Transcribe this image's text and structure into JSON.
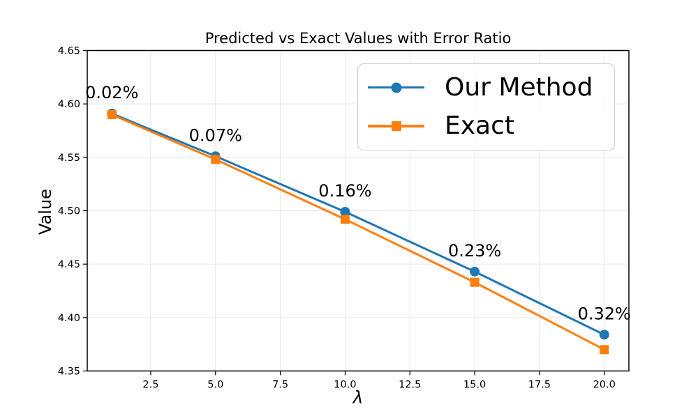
{
  "figure": {
    "title": "Predicted vs Exact Values with Error Ratio",
    "xlabel": "λ",
    "ylabel": "Value",
    "background": "#ffffff"
  },
  "colors": {
    "our_method": "#1f77b4",
    "exact": "#ff7f0e",
    "grid": "#e6e6e6",
    "spine": "#000000",
    "legend_border": "#cccccc"
  },
  "legend": {
    "position": "upper right",
    "items": [
      {
        "label": "Our Method",
        "color": "#1f77b4",
        "marker": "circle"
      },
      {
        "label": "Exact",
        "color": "#ff7f0e",
        "marker": "square"
      }
    ]
  },
  "chart_data": {
    "type": "line",
    "title": "Predicted vs Exact Values with Error Ratio",
    "xlabel": "λ",
    "ylabel": "Value",
    "grid": true,
    "legend_position": "upper right",
    "x": [
      1,
      5,
      10,
      15,
      20
    ],
    "series": [
      {
        "name": "Our Method",
        "color": "#1f77b4",
        "marker": "circle",
        "values": [
          4.591,
          4.551,
          4.499,
          4.443,
          4.384
        ]
      },
      {
        "name": "Exact",
        "color": "#ff7f0e",
        "marker": "square",
        "values": [
          4.59,
          4.548,
          4.492,
          4.433,
          4.37
        ]
      }
    ],
    "annotations": [
      {
        "x": 1,
        "label": "0.02%"
      },
      {
        "x": 5,
        "label": "0.07%"
      },
      {
        "x": 10,
        "label": "0.16%"
      },
      {
        "x": 15,
        "label": "0.23%"
      },
      {
        "x": 20,
        "label": "0.32%"
      }
    ],
    "xlim": [
      0.05,
      20.95
    ],
    "ylim": [
      4.35,
      4.65
    ],
    "xticks": [
      2.5,
      5.0,
      7.5,
      10.0,
      12.5,
      15.0,
      17.5,
      20.0
    ],
    "xtick_labels": [
      "2.5",
      "5.0",
      "7.5",
      "10.0",
      "12.5",
      "15.0",
      "17.5",
      "20.0"
    ],
    "yticks": [
      4.35,
      4.4,
      4.45,
      4.5,
      4.55,
      4.6,
      4.65
    ],
    "ytick_labels": [
      "4.35",
      "4.40",
      "4.45",
      "4.50",
      "4.55",
      "4.60",
      "4.65"
    ]
  }
}
